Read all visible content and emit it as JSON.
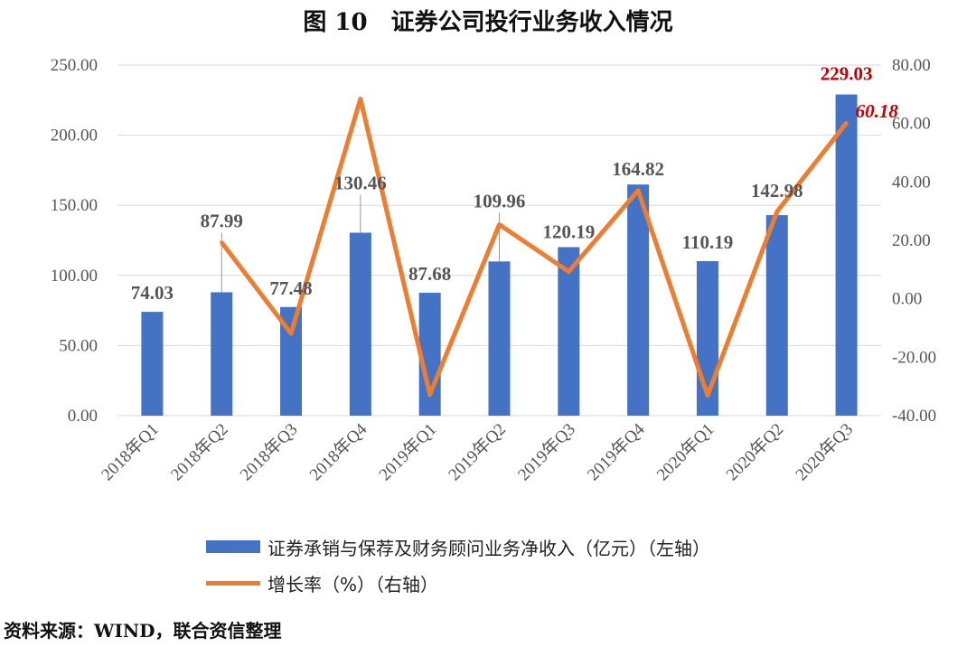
{
  "title": "图 10　证券公司投行业务收入情况",
  "source": "资料来源：WIND，联合资信整理",
  "colors": {
    "bar": "#4472c4",
    "line": "#ed7d31",
    "highlight": "#c00000",
    "grid": "#d9d9d9"
  },
  "chart_data": {
    "type": "bar",
    "categories": [
      "2018年Q1",
      "2018年Q2",
      "2018年Q3",
      "2018年Q4",
      "2019年Q1",
      "2019年Q2",
      "2019年Q3",
      "2019年Q4",
      "2020年Q1",
      "2020年Q2",
      "2020年Q3"
    ],
    "series": [
      {
        "name": "证券承销与保荐及财务顾问业务净收入（亿元）（左轴）",
        "type": "bar",
        "axis": "left",
        "values": [
          74.03,
          87.99,
          77.48,
          130.46,
          87.68,
          109.96,
          120.19,
          164.82,
          110.19,
          142.98,
          229.03
        ],
        "labels": [
          "74.03",
          "87.99",
          "77.48",
          "130.46",
          "87.68",
          "109.96",
          "120.19",
          "164.82",
          "110.19",
          "142.98",
          "229.03"
        ]
      },
      {
        "name": "增长率（%）（右轴）",
        "type": "line",
        "axis": "right",
        "values": [
          null,
          19.3,
          -11.9,
          68.4,
          -32.8,
          25.4,
          9.3,
          37.1,
          -33.1,
          29.8,
          60.18
        ],
        "labels": [
          "",
          "",
          "",
          "",
          "",
          "",
          "",
          "",
          "",
          "",
          "60.18"
        ]
      }
    ],
    "ylim_left": [
      0,
      250
    ],
    "yticks_left": [
      "0.00",
      "50.00",
      "100.00",
      "150.00",
      "200.00",
      "250.00"
    ],
    "ylim_right": [
      -40,
      80
    ],
    "yticks_right": [
      "-40.00",
      "-20.00",
      "0.00",
      "20.00",
      "40.00",
      "60.00",
      "80.00"
    ],
    "grid": true,
    "legend_position": "bottom"
  }
}
